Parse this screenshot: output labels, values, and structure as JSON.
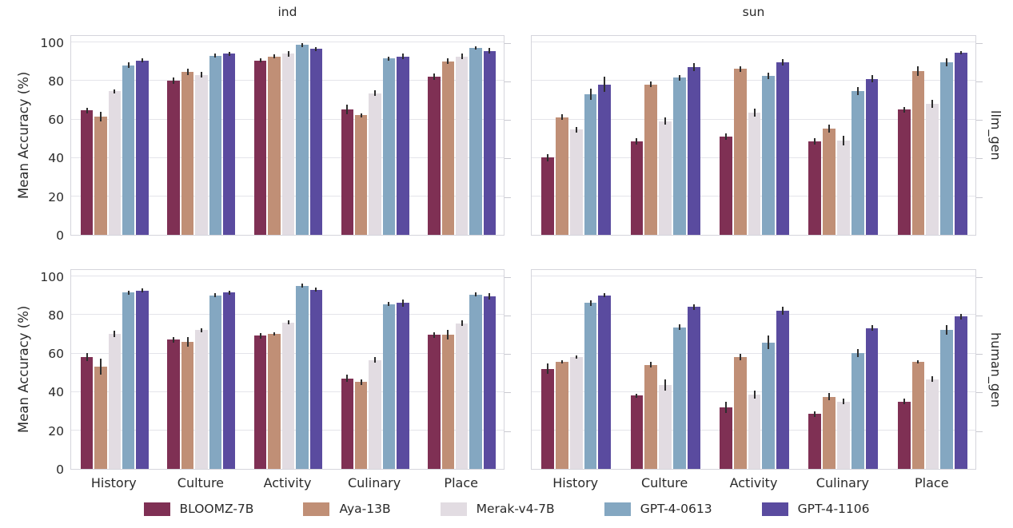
{
  "figure": {
    "ylabel": "Mean Accuracy (%)",
    "col_titles": [
      "ind",
      "sun"
    ],
    "row_labels": [
      "llm_gen",
      "human_gen"
    ]
  },
  "chart_data": {
    "type": "bar",
    "title": "",
    "xlabel": "",
    "ylabel": "Mean Accuracy (%)",
    "grid": true,
    "legend_position": "bottom",
    "ylim": [
      0,
      104
    ],
    "yticks": [
      0,
      20,
      40,
      60,
      80,
      100
    ],
    "categories": [
      "History",
      "Culture",
      "Activity",
      "Culinary",
      "Place"
    ],
    "series_names": [
      "BLOOMZ-7B",
      "Aya-13B",
      "Merak-v4-7B",
      "GPT-4-0613",
      "GPT-4-1106"
    ],
    "series_colors": {
      "BLOOMZ-7B": "#7f3054",
      "Aya-13B": "#c08f76",
      "Merak-v4-7B": "#e2dce2",
      "GPT-4-0613": "#84a7c1",
      "GPT-4-1106": "#5a4b9f"
    },
    "facet": {
      "columns": [
        "ind",
        "sun"
      ],
      "rows": [
        "llm_gen",
        "human_gen"
      ]
    },
    "panels": [
      {
        "col": "ind",
        "row": "llm_gen",
        "series": [
          {
            "name": "BLOOMZ-7B",
            "values": [
              64.5,
              80,
              90.5,
              65,
              82
            ],
            "errors": [
              1.5,
              1.5,
              1,
              2.5,
              1.5
            ]
          },
          {
            "name": "Aya-13B",
            "values": [
              61.5,
              84.5,
              92.5,
              62,
              90
            ],
            "errors": [
              2.5,
              1.5,
              1,
              1,
              1.5
            ]
          },
          {
            "name": "Merak-v4-7B",
            "values": [
              74.5,
              83,
              94,
              73.5,
              92.5
            ],
            "errors": [
              1,
              1.5,
              1.5,
              1.5,
              1.5
            ]
          },
          {
            "name": "GPT-4-0613",
            "values": [
              88,
              93,
              98.5,
              91.5,
              97
            ],
            "errors": [
              1.5,
              1,
              1,
              1,
              1
            ]
          },
          {
            "name": "GPT-4-1106",
            "values": [
              90.5,
              94,
              96.5,
              92.5,
              95.5
            ],
            "errors": [
              1,
              1,
              1,
              1.5,
              1.5
            ]
          }
        ]
      },
      {
        "col": "sun",
        "row": "llm_gen",
        "series": [
          {
            "name": "BLOOMZ-7B",
            "values": [
              40,
              48.5,
              51,
              48.5,
              65
            ],
            "errors": [
              2,
              1.5,
              1.5,
              1.5,
              1.5
            ]
          },
          {
            "name": "Aya-13B",
            "values": [
              61,
              78,
              86,
              55,
              85
            ],
            "errors": [
              1.5,
              1.5,
              1.5,
              2,
              2.5
            ]
          },
          {
            "name": "Merak-v4-7B",
            "values": [
              54.5,
              59,
              63.5,
              49,
              68
            ],
            "errors": [
              1.5,
              2,
              2,
              2.5,
              2
            ]
          },
          {
            "name": "GPT-4-0613",
            "values": [
              73,
              81.5,
              82.5,
              74.5,
              89.5
            ],
            "errors": [
              3,
              1.5,
              1.5,
              2,
              2
            ]
          },
          {
            "name": "GPT-4-1106",
            "values": [
              78,
              87,
              89.5,
              81,
              94.5
            ],
            "errors": [
              4,
              2,
              1.5,
              2,
              1
            ]
          }
        ]
      },
      {
        "col": "ind",
        "row": "human_gen",
        "series": [
          {
            "name": "BLOOMZ-7B",
            "values": [
              58,
              67,
              69,
              47,
              69.5
            ],
            "errors": [
              2,
              1.5,
              1.5,
              2,
              1.5
            ]
          },
          {
            "name": "Aya-13B",
            "values": [
              53,
              66,
              70,
              45,
              69.5
            ],
            "errors": [
              4,
              2.5,
              1,
              1.5,
              2.5
            ]
          },
          {
            "name": "Merak-v4-7B",
            "values": [
              70,
              72,
              76,
              56.5,
              75.5
            ],
            "errors": [
              1.5,
              1,
              1,
              1.5,
              1.5
            ]
          },
          {
            "name": "GPT-4-0613",
            "values": [
              91.5,
              90,
              95,
              85.5,
              90.5
            ],
            "errors": [
              1,
              1,
              1,
              1,
              1
            ]
          },
          {
            "name": "GPT-4-1106",
            "values": [
              92.5,
              91.5,
              93,
              86,
              89.5
            ],
            "errors": [
              1,
              1,
              1,
              2,
              1.5
            ]
          }
        ]
      },
      {
        "col": "sun",
        "row": "human_gen",
        "series": [
          {
            "name": "BLOOMZ-7B",
            "values": [
              52,
              38,
              32,
              28.5,
              35
            ],
            "errors": [
              2.5,
              1,
              3,
              1.5,
              1.5
            ]
          },
          {
            "name": "Aya-13B",
            "values": [
              55.5,
              54,
              58,
              37.5,
              55.5
            ],
            "errors": [
              1,
              1.5,
              1.5,
              2,
              1
            ]
          },
          {
            "name": "Merak-v4-7B",
            "values": [
              58,
              43.5,
              38.5,
              35,
              46.5
            ],
            "errors": [
              1,
              3,
              2,
              1.5,
              1.5
            ]
          },
          {
            "name": "GPT-4-0613",
            "values": [
              86,
              73.5,
              65.5,
              60,
              72
            ],
            "errors": [
              1.5,
              1.5,
              3.5,
              2,
              2.5
            ]
          },
          {
            "name": "GPT-4-1106",
            "values": [
              90,
              84,
              82,
              73,
              79
            ],
            "errors": [
              1,
              1.5,
              2,
              1.5,
              1.5
            ]
          }
        ]
      }
    ]
  }
}
